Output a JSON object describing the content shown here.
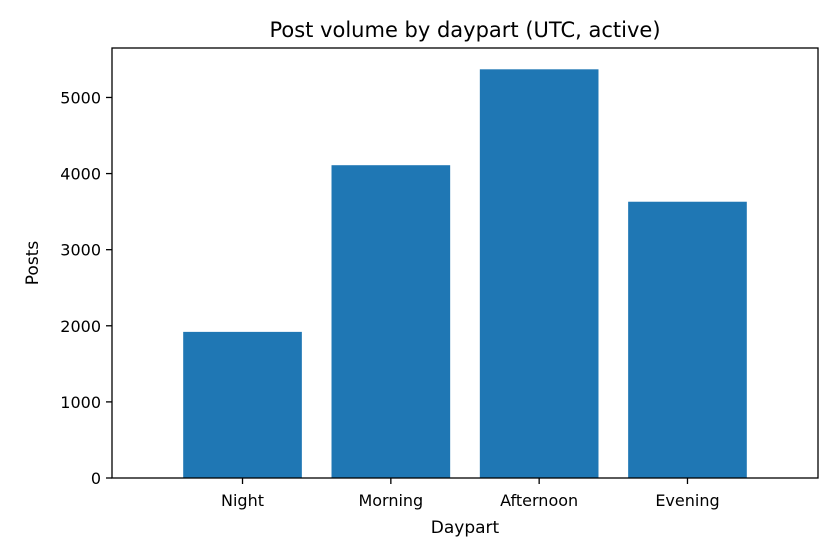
{
  "chart_data": {
    "type": "bar",
    "title": "Post volume by daypart (UTC, active)",
    "xlabel": "Daypart",
    "ylabel": "Posts",
    "categories": [
      "Night",
      "Morning",
      "Afternoon",
      "Evening"
    ],
    "values": [
      1920,
      4110,
      5370,
      3630
    ],
    "ylim": [
      0,
      5650
    ],
    "yticks": [
      0,
      1000,
      2000,
      3000,
      4000,
      5000
    ],
    "grid": false,
    "bar_color": "#1f77b4"
  }
}
